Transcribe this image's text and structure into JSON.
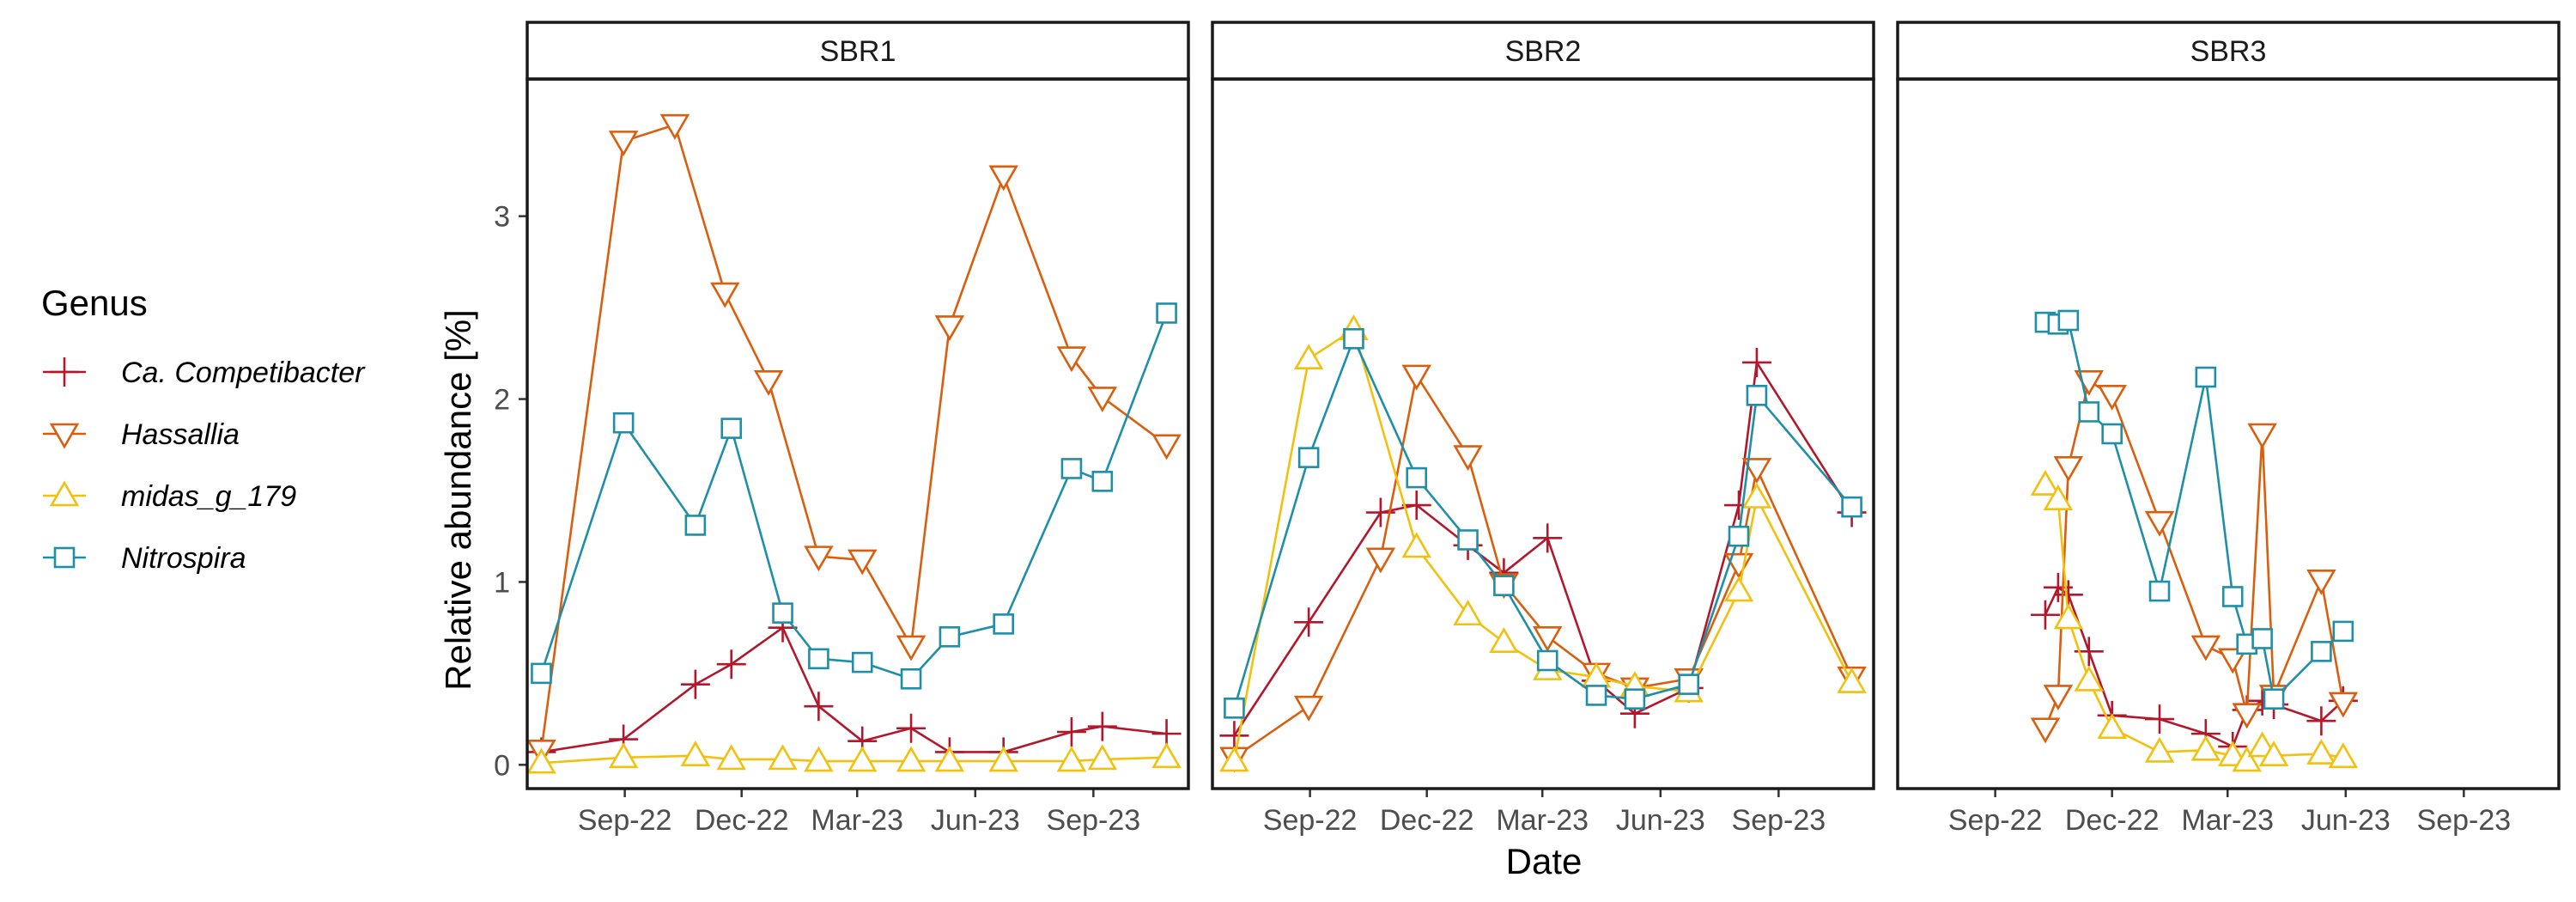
{
  "chart_data": {
    "type": "line",
    "facet_strips": [
      "SBR1",
      "SBR2",
      "SBR3"
    ],
    "xlabel": "Date",
    "ylabel": "Relative abundance [%]",
    "x_tick_labels": [
      "Sep-22",
      "Dec-22",
      "Mar-23",
      "Jun-23",
      "Sep-23"
    ],
    "x_tick_dates": [
      "2022-09-01",
      "2022-12-01",
      "2023-03-01",
      "2023-06-01",
      "2023-09-01"
    ],
    "xlim": [
      "2022-06-17",
      "2023-11-14"
    ],
    "y_ticks": [
      "0",
      "1",
      "2",
      "3"
    ],
    "ylim": [
      -0.13,
      3.75
    ],
    "grid": false,
    "legend": {
      "title": "Genus",
      "placement": "left",
      "entries": [
        "Ca. Competibacter",
        "Hassallia",
        "midas_g_179",
        "Nitrospira"
      ]
    },
    "series": [
      {
        "name": "Ca. Competibacter",
        "color": "#B2182B",
        "marker": "plus",
        "panels": [
          {
            "x": [
              "2022-06-28",
              "2022-08-31",
              "2022-10-26",
              "2022-11-23",
              "2023-01-02",
              "2023-01-30",
              "2023-03-05",
              "2023-04-12",
              "2023-05-12",
              "2023-06-23",
              "2023-08-15",
              "2023-09-08",
              "2023-10-28"
            ],
            "y": [
              0.07,
              0.14,
              0.44,
              0.55,
              0.75,
              0.32,
              0.13,
              0.2,
              0.07,
              0.07,
              0.18,
              0.21,
              0.17
            ]
          },
          {
            "x": [
              "2022-07-04",
              "2022-08-31",
              "2022-10-26",
              "2022-11-23",
              "2023-01-02",
              "2023-01-30",
              "2023-03-05",
              "2023-04-12",
              "2023-05-12",
              "2023-06-23",
              "2023-08-01",
              "2023-08-15",
              "2023-10-28"
            ],
            "y": [
              0.16,
              0.78,
              1.38,
              1.42,
              1.2,
              1.05,
              1.24,
              0.46,
              0.28,
              0.42,
              1.42,
              2.2,
              1.38
            ]
          },
          {
            "x": [
              "2022-10-10",
              "2022-10-20",
              "2022-10-28",
              "2022-11-13",
              "2022-12-01",
              "2023-01-07",
              "2023-02-12",
              "2023-03-05",
              "2023-03-16",
              "2023-03-28",
              "2023-04-06",
              "2023-05-13",
              "2023-05-30"
            ],
            "y": [
              0.82,
              0.97,
              0.93,
              0.62,
              0.27,
              0.25,
              0.17,
              0.1,
              0.3,
              0.35,
              0.33,
              0.24,
              0.35
            ]
          }
        ]
      },
      {
        "name": "Hassallia",
        "color": "#D95F0E",
        "marker": "triangle-down",
        "panels": [
          {
            "x": [
              "2022-06-28",
              "2022-08-31",
              "2022-10-10",
              "2022-11-18",
              "2022-12-22",
              "2023-01-30",
              "2023-03-05",
              "2023-04-12",
              "2023-05-12",
              "2023-06-23",
              "2023-08-15",
              "2023-09-08",
              "2023-10-28"
            ],
            "y": [
              0.08,
              3.41,
              3.5,
              2.58,
              2.1,
              1.14,
              1.12,
              0.65,
              2.4,
              3.22,
              2.23,
              2.01,
              1.75
            ]
          },
          {
            "x": [
              "2022-07-04",
              "2022-08-31",
              "2022-10-26",
              "2022-11-23",
              "2023-01-02",
              "2023-01-30",
              "2023-03-05",
              "2023-04-12",
              "2023-05-12",
              "2023-06-23",
              "2023-08-01",
              "2023-08-15",
              "2023-10-28"
            ],
            "y": [
              0.04,
              0.32,
              1.13,
              2.13,
              1.69,
              0.99,
              0.7,
              0.5,
              0.42,
              0.47,
              1.1,
              1.62,
              0.48
            ]
          },
          {
            "x": [
              "2022-10-10",
              "2022-10-20",
              "2022-10-28",
              "2022-11-13",
              "2022-12-01",
              "2023-01-07",
              "2023-02-12",
              "2023-03-05",
              "2023-03-16",
              "2023-03-28",
              "2023-04-06",
              "2023-05-13",
              "2023-05-30"
            ],
            "y": [
              0.2,
              0.38,
              1.63,
              2.1,
              2.02,
              1.33,
              0.65,
              0.58,
              0.28,
              1.81,
              0.38,
              1.01,
              0.34
            ]
          }
        ]
      },
      {
        "name": "midas_g_179",
        "color": "#F2C10F",
        "marker": "triangle-up",
        "panels": [
          {
            "x": [
              "2022-06-28",
              "2022-08-31",
              "2022-10-26",
              "2022-11-23",
              "2023-01-02",
              "2023-01-30",
              "2023-03-05",
              "2023-04-12",
              "2023-05-12",
              "2023-06-23",
              "2023-08-15",
              "2023-09-08",
              "2023-10-28"
            ],
            "y": [
              0.01,
              0.04,
              0.05,
              0.03,
              0.03,
              0.02,
              0.02,
              0.02,
              0.02,
              0.02,
              0.02,
              0.03,
              0.04
            ]
          },
          {
            "x": [
              "2022-07-04",
              "2022-08-31",
              "2022-10-05",
              "2022-11-23",
              "2023-01-02",
              "2023-01-30",
              "2023-03-05",
              "2023-04-12",
              "2023-05-12",
              "2023-06-23",
              "2023-08-01",
              "2023-08-15",
              "2023-10-28"
            ],
            "y": [
              0.02,
              2.22,
              2.38,
              1.19,
              0.82,
              0.67,
              0.52,
              0.48,
              0.43,
              0.4,
              0.95,
              1.46,
              0.45
            ]
          },
          {
            "x": [
              "2022-10-10",
              "2022-10-20",
              "2022-10-28",
              "2022-11-13",
              "2022-12-01",
              "2023-01-07",
              "2023-02-12",
              "2023-03-05",
              "2023-03-16",
              "2023-03-28",
              "2023-04-06",
              "2023-05-13",
              "2023-05-30"
            ],
            "y": [
              1.53,
              1.45,
              0.8,
              0.46,
              0.2,
              0.07,
              0.08,
              0.05,
              0.02,
              0.1,
              0.05,
              0.06,
              0.04
            ]
          }
        ]
      },
      {
        "name": "Nitrospira",
        "color": "#1F8FA8",
        "marker": "square",
        "panels": [
          {
            "x": [
              "2022-06-28",
              "2022-08-31",
              "2022-10-26",
              "2022-11-23",
              "2023-01-02",
              "2023-01-30",
              "2023-03-05",
              "2023-04-12",
              "2023-05-12",
              "2023-06-23",
              "2023-08-15",
              "2023-09-08",
              "2023-10-28"
            ],
            "y": [
              0.5,
              1.87,
              1.31,
              1.84,
              0.83,
              0.58,
              0.56,
              0.47,
              0.7,
              0.77,
              1.62,
              1.55,
              2.47
            ]
          },
          {
            "x": [
              "2022-07-04",
              "2022-08-31",
              "2022-10-05",
              "2022-11-23",
              "2023-01-02",
              "2023-01-30",
              "2023-03-05",
              "2023-04-12",
              "2023-05-12",
              "2023-06-23",
              "2023-08-01",
              "2023-08-15",
              "2023-10-28"
            ],
            "y": [
              0.31,
              1.68,
              2.33,
              1.57,
              1.23,
              0.98,
              0.57,
              0.38,
              0.36,
              0.44,
              1.25,
              2.02,
              1.41
            ]
          },
          {
            "x": [
              "2022-10-10",
              "2022-10-20",
              "2022-10-28",
              "2022-11-13",
              "2022-12-01",
              "2023-01-07",
              "2023-02-12",
              "2023-03-05",
              "2023-03-16",
              "2023-03-28",
              "2023-04-06",
              "2023-05-13",
              "2023-05-30"
            ],
            "y": [
              2.42,
              2.41,
              2.43,
              1.93,
              1.81,
              0.95,
              2.12,
              0.92,
              0.66,
              0.69,
              0.36,
              0.62,
              0.73
            ]
          }
        ]
      }
    ]
  }
}
